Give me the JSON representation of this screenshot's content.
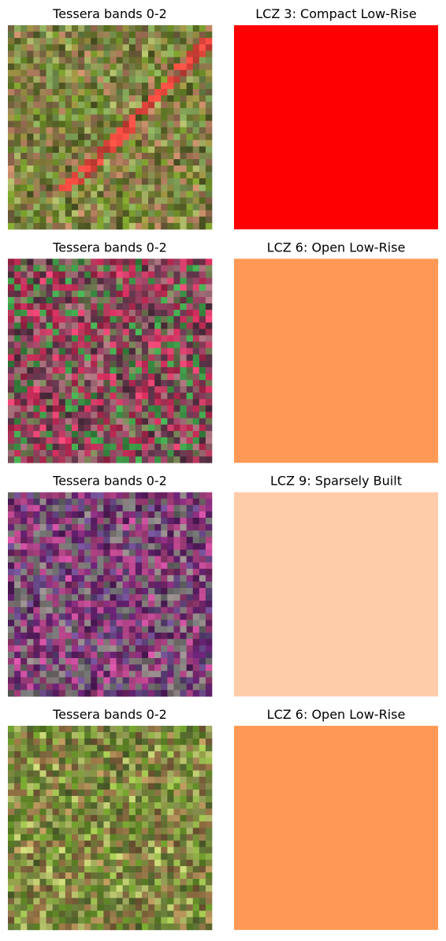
{
  "panels": [
    {
      "image_title": "Tessera bands 0-2",
      "label_title": "LCZ 3: Compact Low-Rise",
      "label_color": "#ff0000"
    },
    {
      "image_title": "Tessera bands 0-2",
      "label_title": "LCZ 6: Open Low-Rise",
      "label_color": "#ff9955"
    },
    {
      "image_title": "Tessera bands 0-2",
      "label_title": "LCZ 9: Sparsely Built",
      "label_color": "#ffcca9"
    },
    {
      "image_title": "Tessera bands 0-2",
      "label_title": "LCZ 6: Open Low-Rise",
      "label_color": "#ff9955"
    }
  ]
}
